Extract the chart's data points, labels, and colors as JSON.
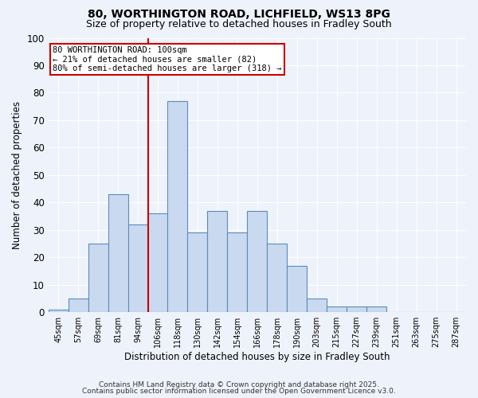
{
  "title1": "80, WORTHINGTON ROAD, LICHFIELD, WS13 8PG",
  "title2": "Size of property relative to detached houses in Fradley South",
  "xlabel": "Distribution of detached houses by size in Fradley South",
  "ylabel": "Number of detached properties",
  "bar_labels": [
    "45sqm",
    "57sqm",
    "69sqm",
    "81sqm",
    "94sqm",
    "106sqm",
    "118sqm",
    "130sqm",
    "142sqm",
    "154sqm",
    "166sqm",
    "178sqm",
    "190sqm",
    "203sqm",
    "215sqm",
    "227sqm",
    "239sqm",
    "251sqm",
    "263sqm",
    "275sqm",
    "287sqm"
  ],
  "bar_values": [
    1,
    5,
    25,
    43,
    32,
    36,
    77,
    29,
    37,
    29,
    37,
    25,
    17,
    5,
    2,
    2,
    2,
    0,
    0,
    0,
    0
  ],
  "bar_color": "#c9d9f0",
  "bar_edge_color": "#5b8db8",
  "bar_edge_width": 0.8,
  "vline_color": "#cc0000",
  "annotation_line1": "80 WORTHINGTON ROAD: 100sqm",
  "annotation_line2": "← 21% of detached houses are smaller (82)",
  "annotation_line3": "80% of semi-detached houses are larger (318) →",
  "annotation_box_color": "#ffffff",
  "annotation_box_edge_color": "#cc0000",
  "annotation_fontsize": 7.5,
  "ylim": [
    0,
    100
  ],
  "yticks": [
    0,
    10,
    20,
    30,
    40,
    50,
    60,
    70,
    80,
    90,
    100
  ],
  "footnote1": "Contains HM Land Registry data © Crown copyright and database right 2025.",
  "footnote2": "Contains public sector information licensed under the Open Government Licence v3.0.",
  "background_color": "#eef2fb",
  "grid_color": "#ffffff",
  "title1_fontsize": 10,
  "title2_fontsize": 9
}
